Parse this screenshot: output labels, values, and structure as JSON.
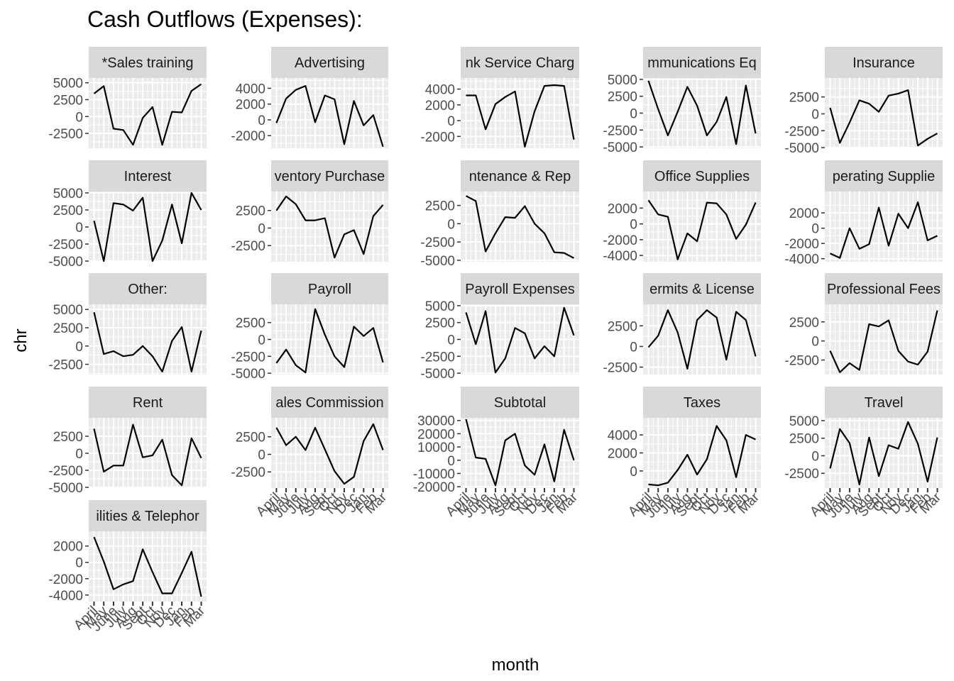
{
  "chart_data": {
    "type": "line",
    "title": "Cash Outflows (Expenses):",
    "xlabel": "month",
    "ylabel": "chr",
    "x_categories": [
      "April",
      "May",
      "June",
      "July",
      "Aug",
      "Sept",
      "Oct",
      "Nov",
      "Dec",
      "Jan",
      "Feb",
      "Mar"
    ],
    "grid": true,
    "colors": {
      "panel_bg": "#EBEBEB",
      "strip_bg": "#D9D9D9",
      "grid": "#FFFFFF",
      "line": "#000000",
      "text": "#4D4D4D"
    },
    "panels": [
      {
        "label": "*Sales training",
        "strip_text": "*Sales training",
        "yticks": [
          -2500,
          0,
          2500,
          5000
        ],
        "ylim": [
          -4700,
          5700
        ],
        "values": [
          3400,
          4500,
          -1800,
          -2000,
          -4200,
          -200,
          1400,
          -4200,
          700,
          600,
          3800,
          4800
        ]
      },
      {
        "label": "Advertising",
        "strip_text": "Advertising",
        "yticks": [
          -2000,
          0,
          2000,
          4000
        ],
        "ylim": [
          -3600,
          5300
        ],
        "values": [
          -400,
          2700,
          3800,
          4300,
          -300,
          3100,
          2600,
          -3100,
          2400,
          -700,
          600,
          -3400
        ]
      },
      {
        "label": "Bank Service Charges",
        "strip_text": "nk Service Charg",
        "yticks": [
          -2000,
          0,
          2000,
          4000
        ],
        "ylim": [
          -3500,
          5400
        ],
        "values": [
          3200,
          3200,
          -1100,
          2100,
          3000,
          3700,
          -3300,
          1200,
          4400,
          4500,
          4400,
          -2400
        ]
      },
      {
        "label": "Communications Equipment",
        "strip_text": "mmunications Eq",
        "yticks": [
          -5000,
          -2500,
          0,
          2500,
          5000
        ],
        "ylim": [
          -5200,
          5200
        ],
        "values": [
          4800,
          600,
          -3300,
          200,
          3900,
          1100,
          -3300,
          -1300,
          2400,
          -4600,
          4100,
          -3000
        ]
      },
      {
        "label": "Insurance",
        "strip_text": "Insurance",
        "yticks": [
          -5000,
          -2500,
          0,
          2500
        ],
        "ylim": [
          -5100,
          5300
        ],
        "values": [
          900,
          -4300,
          -1300,
          2000,
          1500,
          300,
          2700,
          3000,
          3500,
          -4700,
          -3700,
          -2900
        ]
      },
      {
        "label": "Interest",
        "strip_text": "Interest",
        "yticks": [
          -5000,
          -2500,
          0,
          2500,
          5000
        ],
        "ylim": [
          -5100,
          5200
        ],
        "values": [
          900,
          -5000,
          3500,
          3300,
          2400,
          4300,
          -5000,
          -2000,
          3300,
          -2400,
          5000,
          2500
        ]
      },
      {
        "label": "Inventory Purchases",
        "strip_text": "ventory Purchase",
        "yticks": [
          -2500,
          0,
          2500
        ],
        "ylim": [
          -4800,
          5200
        ],
        "values": [
          2500,
          4500,
          3400,
          1100,
          1100,
          1400,
          -4200,
          -900,
          -300,
          -3700,
          1700,
          3300
        ]
      },
      {
        "label": "Maintenance & Repairs",
        "strip_text": "ntenance & Rep",
        "yticks": [
          -5000,
          -2500,
          0,
          2500
        ],
        "ylim": [
          -5200,
          4400
        ],
        "values": [
          3800,
          3100,
          -3800,
          -1300,
          900,
          800,
          2400,
          0,
          -1300,
          -3900,
          -4000,
          -4700
        ]
      },
      {
        "label": "Office Supplies",
        "strip_text": "Office Supplies",
        "yticks": [
          -4000,
          -2000,
          0,
          2000
        ],
        "ylim": [
          -4800,
          4100
        ],
        "values": [
          3000,
          1200,
          900,
          -4500,
          -1200,
          -2200,
          2700,
          2600,
          1200,
          -1900,
          -100,
          2700
        ]
      },
      {
        "label": "Operating Supplies",
        "strip_text": "perating Supplie",
        "yticks": [
          -4000,
          -2000,
          0,
          2000
        ],
        "ylim": [
          -4400,
          4800
        ],
        "values": [
          -3300,
          -3900,
          0,
          -2700,
          -2100,
          2700,
          -2300,
          1900,
          0,
          3400,
          -1600,
          -1000
        ]
      },
      {
        "label": "Other:",
        "strip_text": "Other:",
        "yticks": [
          -2500,
          0,
          2500,
          5000
        ],
        "ylim": [
          -3900,
          5700
        ],
        "values": [
          4600,
          -1100,
          -700,
          -1400,
          -1200,
          0,
          -1400,
          -3500,
          700,
          2600,
          -3500,
          2100
        ]
      },
      {
        "label": "Payroll",
        "strip_text": "Payroll",
        "yticks": [
          -5000,
          -2500,
          0,
          2500
        ],
        "ylim": [
          -5200,
          5200
        ],
        "values": [
          -3500,
          -1500,
          -3800,
          -4900,
          4500,
          700,
          -2500,
          -4100,
          1900,
          500,
          1700,
          -3400
        ]
      },
      {
        "label": "Payroll Expenses",
        "strip_text": "Payroll Expenses",
        "yticks": [
          -5000,
          -2500,
          0,
          2500,
          5000
        ],
        "ylim": [
          -5200,
          5200
        ],
        "values": [
          4000,
          -700,
          4200,
          -4900,
          -2800,
          1700,
          900,
          -2800,
          -1000,
          -2500,
          4700,
          600
        ]
      },
      {
        "label": "Permits & Licenses",
        "strip_text": "ermits & License",
        "yticks": [
          -2500,
          0,
          2500
        ],
        "ylim": [
          -3400,
          5100
        ],
        "values": [
          -100,
          1300,
          4400,
          1700,
          -2700,
          3200,
          4400,
          3500,
          -1600,
          4200,
          3200,
          -1200
        ]
      },
      {
        "label": "Professional Fees",
        "strip_text": "Professional Fees",
        "yticks": [
          -2500,
          0,
          2500
        ],
        "ylim": [
          -4400,
          4800
        ],
        "values": [
          -1300,
          -4100,
          -2900,
          -3800,
          2200,
          1900,
          2700,
          -1300,
          -2700,
          -3100,
          -1400,
          4000
        ]
      },
      {
        "label": "Rent",
        "strip_text": "Rent",
        "yticks": [
          -5000,
          -2500,
          0,
          2500
        ],
        "ylim": [
          -5100,
          5200
        ],
        "values": [
          3600,
          -2700,
          -1800,
          -1800,
          4200,
          -600,
          -300,
          2000,
          -3200,
          -4700,
          2200,
          -700
        ]
      },
      {
        "label": "Sales Commissions",
        "strip_text": "ales Commission",
        "yticks": [
          -2500,
          0,
          2500
        ],
        "ylim": [
          -4800,
          5200
        ],
        "values": [
          3800,
          1300,
          2500,
          600,
          3800,
          700,
          -2400,
          -4200,
          -3200,
          1900,
          4300,
          600
        ]
      },
      {
        "label": "Subtotal",
        "strip_text": "Subtotal",
        "yticks": [
          -20000,
          -10000,
          0,
          10000,
          20000,
          30000
        ],
        "ylim": [
          -21000,
          32000
        ],
        "values": [
          31000,
          2000,
          1000,
          -19000,
          15000,
          20000,
          -4000,
          -11000,
          12000,
          -16000,
          23000,
          0
        ]
      },
      {
        "label": "Taxes",
        "strip_text": "Taxes",
        "yticks": [
          0,
          2000,
          4000
        ],
        "ylim": [
          -1900,
          5900
        ],
        "values": [
          -1500,
          -1600,
          -1300,
          100,
          1800,
          -400,
          1300,
          5000,
          3400,
          -700,
          4000,
          3500
        ]
      },
      {
        "label": "Travel",
        "strip_text": "Travel",
        "yticks": [
          -2500,
          0,
          2500,
          5000
        ],
        "ylim": [
          -4600,
          5400
        ],
        "values": [
          -1800,
          3800,
          1800,
          -4100,
          2600,
          -2900,
          1500,
          1000,
          4800,
          1700,
          -3700,
          2600
        ]
      },
      {
        "label": "Utilities & Telephone",
        "strip_text": "ilities & Telephor",
        "yticks": [
          -4000,
          -2000,
          0,
          2000
        ],
        "ylim": [
          -4800,
          3800
        ],
        "values": [
          3100,
          100,
          -3300,
          -2700,
          -2300,
          1600,
          -1200,
          -3800,
          -3800,
          -1300,
          1300,
          -4200
        ]
      }
    ]
  }
}
